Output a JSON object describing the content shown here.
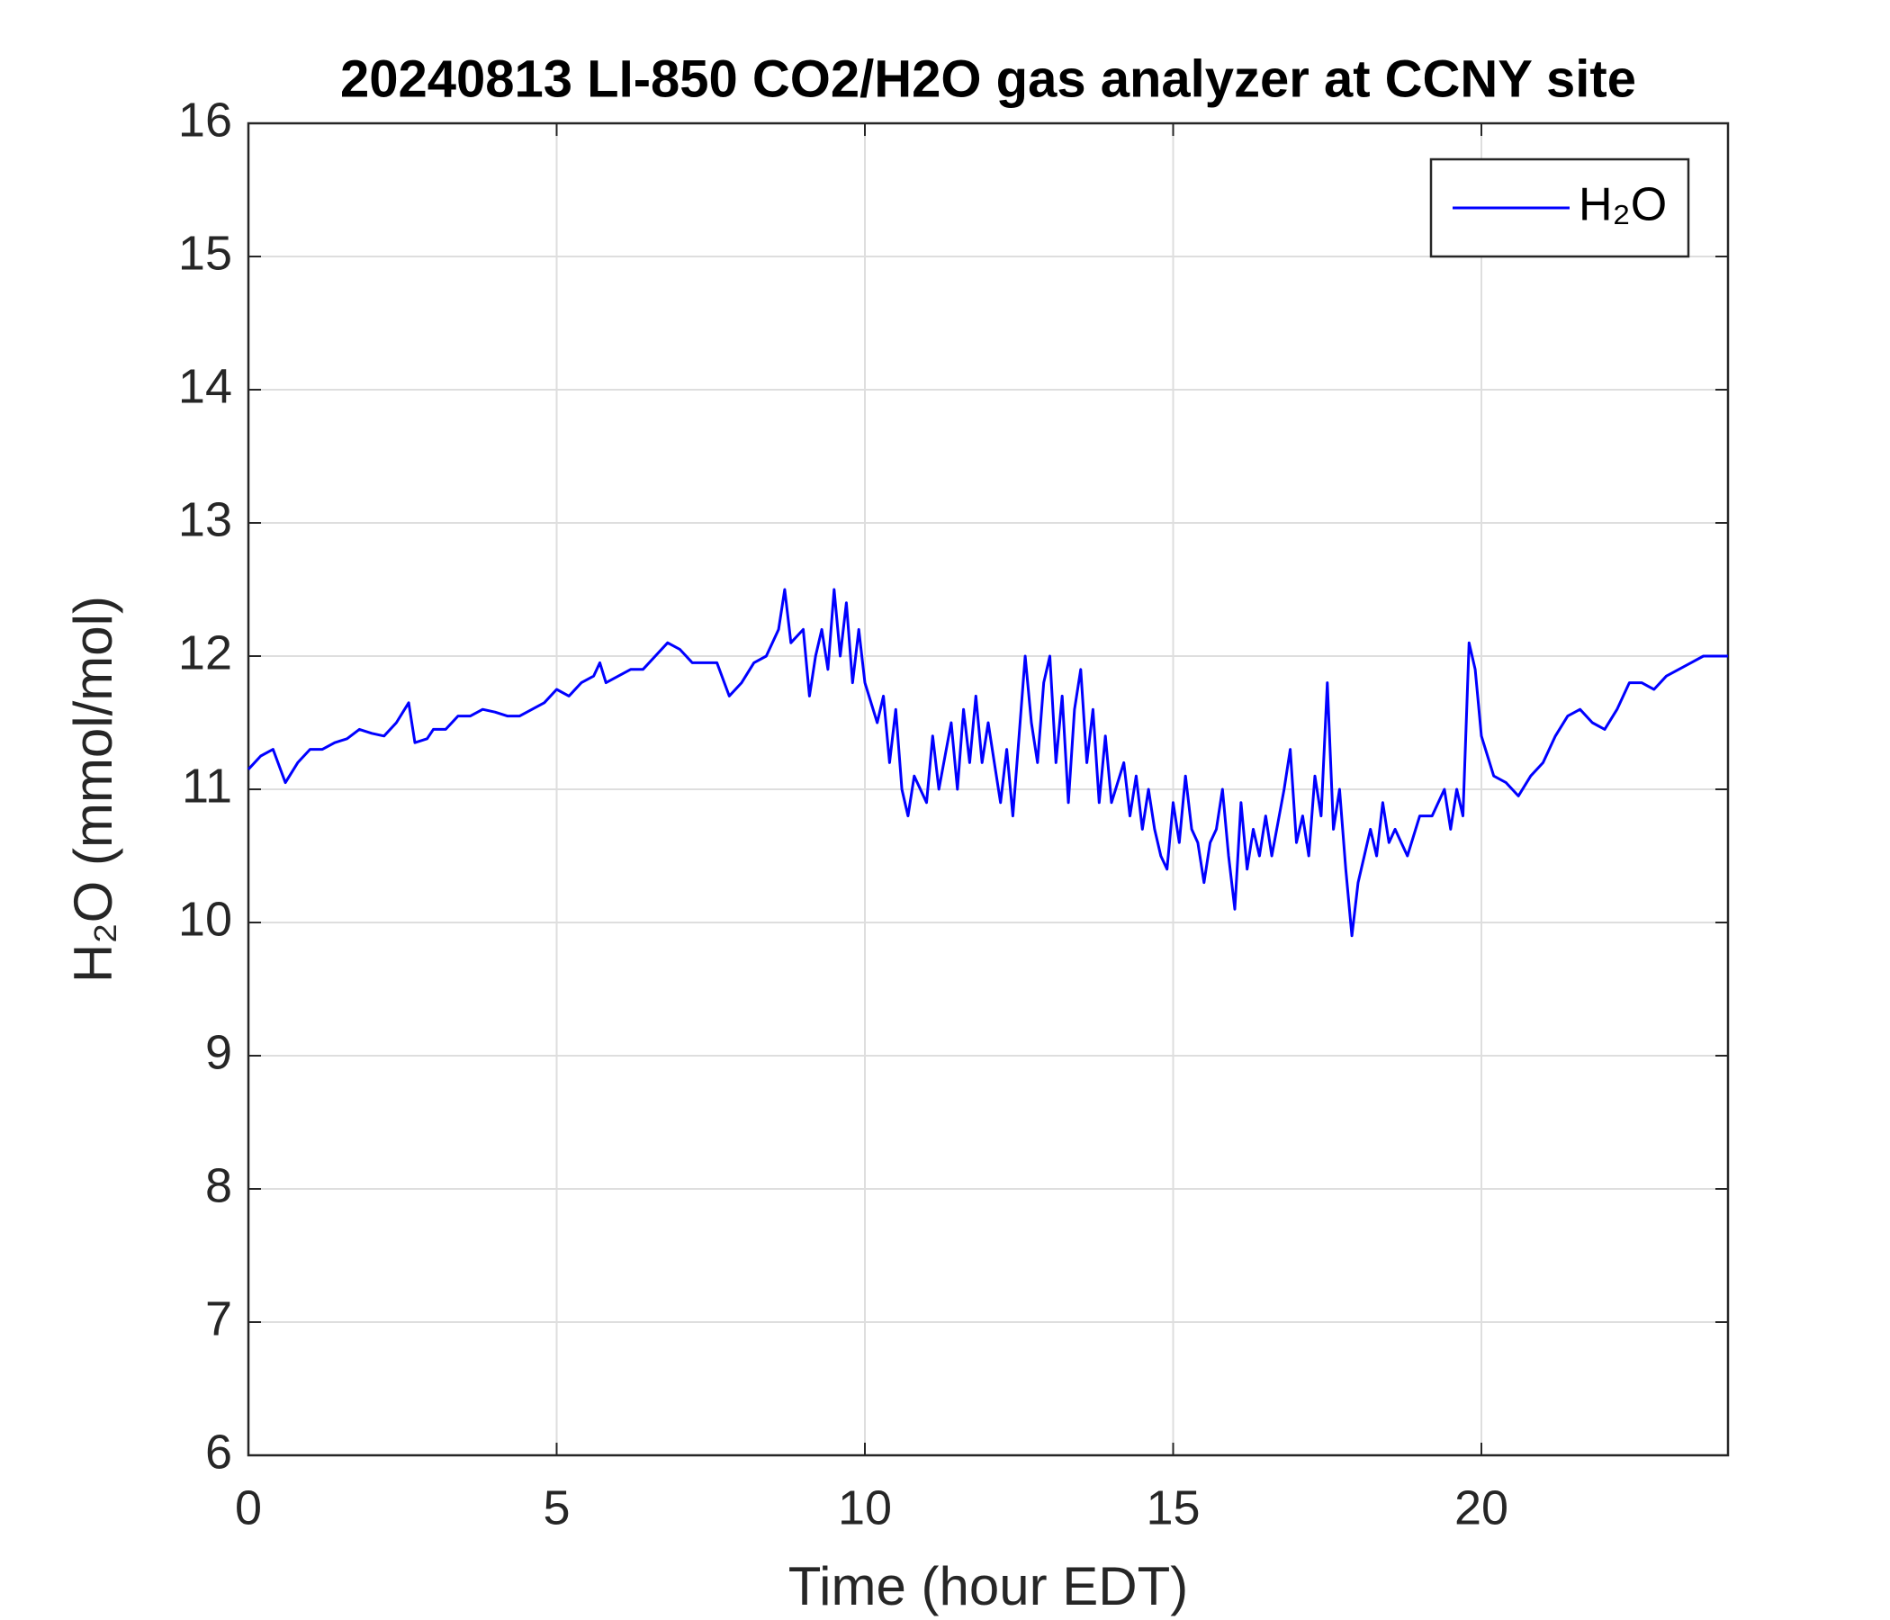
{
  "chart_data": {
    "type": "line",
    "title": "20240813 LI-850 CO2/H2O gas analyzer at CCNY site",
    "xlabel": "Time (hour EDT)",
    "ylabel": "H₂O (mmol/mol)",
    "xlim": [
      0,
      24
    ],
    "xticks": [
      0,
      5,
      10,
      15,
      20
    ],
    "ylim": [
      6,
      16
    ],
    "yticks": [
      6,
      7,
      8,
      9,
      10,
      11,
      12,
      13,
      14,
      15,
      16
    ],
    "grid": true,
    "legend": "northeast",
    "x": [
      0,
      0.2,
      0.4,
      0.6,
      0.8,
      1.0,
      1.2,
      1.4,
      1.6,
      1.8,
      2.0,
      2.2,
      2.4,
      2.6,
      2.7,
      2.9,
      3.0,
      3.2,
      3.4,
      3.6,
      3.8,
      4.0,
      4.2,
      4.4,
      4.6,
      4.8,
      5.0,
      5.2,
      5.4,
      5.6,
      5.7,
      5.8,
      6.0,
      6.2,
      6.4,
      6.6,
      6.8,
      7.0,
      7.2,
      7.4,
      7.6,
      7.8,
      8.0,
      8.2,
      8.4,
      8.6,
      8.7,
      8.8,
      9.0,
      9.1,
      9.2,
      9.3,
      9.4,
      9.5,
      9.6,
      9.7,
      9.8,
      9.9,
      10.0,
      10.2,
      10.3,
      10.4,
      10.5,
      10.6,
      10.7,
      10.8,
      11.0,
      11.1,
      11.2,
      11.4,
      11.5,
      11.6,
      11.7,
      11.8,
      11.9,
      12.0,
      12.1,
      12.2,
      12.3,
      12.4,
      12.5,
      12.6,
      12.7,
      12.8,
      12.9,
      13.0,
      13.1,
      13.2,
      13.3,
      13.4,
      13.5,
      13.6,
      13.7,
      13.8,
      13.9,
      14.0,
      14.2,
      14.3,
      14.4,
      14.5,
      14.6,
      14.7,
      14.8,
      14.9,
      15.0,
      15.1,
      15.2,
      15.3,
      15.4,
      15.5,
      15.6,
      15.7,
      15.8,
      15.9,
      16.0,
      16.1,
      16.2,
      16.3,
      16.4,
      16.5,
      16.6,
      16.8,
      16.9,
      17.0,
      17.1,
      17.2,
      17.3,
      17.4,
      17.5,
      17.6,
      17.7,
      17.8,
      17.9,
      18.0,
      18.1,
      18.2,
      18.3,
      18.4,
      18.5,
      18.6,
      18.8,
      19.0,
      19.2,
      19.4,
      19.5,
      19.6,
      19.7,
      19.8,
      19.9,
      20.0,
      20.2,
      20.4,
      20.6,
      20.8,
      21.0,
      21.2,
      21.4,
      21.6,
      21.8,
      22.0,
      22.2,
      22.4,
      22.6,
      22.8,
      23.0,
      23.2,
      23.4,
      23.6,
      23.8,
      24.0
    ],
    "series": [
      {
        "name": "H₂O",
        "color": "#0000ff",
        "values": [
          11.15,
          11.25,
          11.3,
          11.05,
          11.2,
          11.3,
          11.3,
          11.35,
          11.38,
          11.45,
          11.42,
          11.4,
          11.5,
          11.65,
          11.35,
          11.38,
          11.45,
          11.45,
          11.55,
          11.55,
          11.6,
          11.58,
          11.55,
          11.55,
          11.6,
          11.65,
          11.75,
          11.7,
          11.8,
          11.85,
          11.95,
          11.8,
          11.85,
          11.9,
          11.9,
          12.0,
          12.1,
          12.05,
          11.95,
          11.95,
          11.95,
          11.7,
          11.8,
          11.95,
          12.0,
          12.2,
          12.5,
          12.1,
          12.2,
          11.7,
          12.0,
          12.2,
          11.9,
          12.5,
          12.0,
          12.4,
          11.8,
          12.2,
          11.8,
          11.5,
          11.7,
          11.2,
          11.6,
          11.0,
          10.8,
          11.1,
          10.9,
          11.4,
          11.0,
          11.5,
          11.0,
          11.6,
          11.2,
          11.7,
          11.2,
          11.5,
          11.2,
          10.9,
          11.3,
          10.8,
          11.4,
          12.0,
          11.5,
          11.2,
          11.8,
          12.0,
          11.2,
          11.7,
          10.9,
          11.6,
          11.9,
          11.2,
          11.6,
          10.9,
          11.4,
          10.9,
          11.2,
          10.8,
          11.1,
          10.7,
          11.0,
          10.7,
          10.5,
          10.4,
          10.9,
          10.6,
          11.1,
          10.7,
          10.6,
          10.3,
          10.6,
          10.7,
          11.0,
          10.5,
          10.1,
          10.9,
          10.4,
          10.7,
          10.5,
          10.8,
          10.5,
          11.0,
          11.3,
          10.6,
          10.8,
          10.5,
          11.1,
          10.8,
          11.8,
          10.7,
          11.0,
          10.4,
          9.9,
          10.3,
          10.5,
          10.7,
          10.5,
          10.9,
          10.6,
          10.7,
          10.5,
          10.8,
          10.8,
          11.0,
          10.7,
          11.0,
          10.8,
          12.1,
          11.9,
          11.4,
          11.1,
          11.05,
          10.95,
          11.1,
          11.2,
          11.4,
          11.55,
          11.6,
          11.5,
          11.45,
          11.6,
          11.8,
          11.8,
          11.75,
          11.85,
          11.9,
          11.95,
          12.0,
          12.0,
          12.0
        ]
      }
    ]
  }
}
